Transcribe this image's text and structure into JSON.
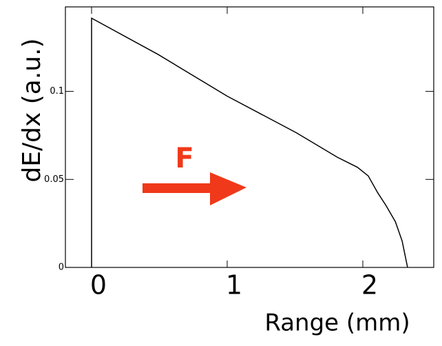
{
  "chart_data": {
    "type": "line",
    "x_label": "Range (mm)",
    "y_label": "dE/dx (a.u.)",
    "x": [
      0,
      0,
      0.49,
      1.0,
      1.51,
      1.81,
      1.96,
      2.04,
      2.11,
      2.17,
      2.24,
      2.29,
      2.33
    ],
    "series": [
      {
        "color": "#000000",
        "values": [
          0,
          0.1416,
          0.121,
          0.0973,
          0.0765,
          0.0627,
          0.0569,
          0.052,
          0.0424,
          0.0353,
          0.026,
          0.015,
          0
        ]
      }
    ],
    "xlim": [
      -0.193,
      2.523
    ],
    "xticks": [
      0,
      1,
      2
    ],
    "ylim": [
      0,
      0.148
    ],
    "yticks": [
      0,
      0.05,
      0.1
    ],
    "annotation": "F",
    "annotation_color": "#f0391a"
  }
}
